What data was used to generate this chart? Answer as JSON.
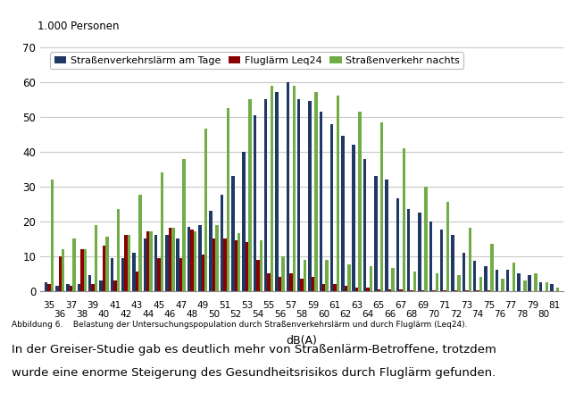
{
  "ylabel": "1.000 Personen",
  "xlabel": "dB(A)",
  "ylim": [
    0,
    70
  ],
  "yticks": [
    0,
    10,
    20,
    30,
    40,
    50,
    60,
    70
  ],
  "legend_labels": [
    "Straßenverkehrslärm am Tage",
    "Fluglärm Leq24",
    "Straßenverkehr nachts"
  ],
  "colors": [
    "#1F3864",
    "#8B0000",
    "#70AD47"
  ],
  "x_labels_top": [
    "35",
    "37",
    "39",
    "41",
    "43",
    "45",
    "47",
    "49",
    "51",
    "53",
    "55",
    "57",
    "59",
    "61",
    "63",
    "65",
    "67",
    "69",
    "71",
    "73",
    "75",
    "77",
    "79",
    "81"
  ],
  "x_labels_bottom": [
    "36",
    "38",
    "40",
    "42",
    "44",
    "46",
    "48",
    "50",
    "52",
    "54",
    "56",
    "58",
    "60",
    "62",
    "64",
    "66",
    "68",
    "70",
    "72",
    "74",
    "76",
    "78",
    "80"
  ],
  "street_day": [
    2.5,
    1.5,
    2.0,
    2.0,
    4.5,
    3.0,
    9.5,
    9.5,
    11.0,
    15.0,
    16.0,
    16.0,
    15.0,
    18.5,
    19.0,
    23.0,
    27.5,
    33.0,
    40.0,
    50.5,
    55.0,
    57.0,
    60.0,
    55.0,
    54.5,
    51.5,
    48.0,
    44.5,
    42.0,
    38.0,
    33.0,
    32.0,
    26.5,
    23.5,
    22.5,
    20.0,
    17.5,
    16.0,
    11.0,
    8.5,
    7.0,
    6.0,
    6.0,
    5.0,
    4.5,
    2.5,
    2.0
  ],
  "flight": [
    2.0,
    10.0,
    1.5,
    12.0,
    2.0,
    13.0,
    3.0,
    16.0,
    5.5,
    17.0,
    9.5,
    18.0,
    9.5,
    17.5,
    10.5,
    15.0,
    15.0,
    14.5,
    14.0,
    9.0,
    5.0,
    4.0,
    5.0,
    3.5,
    4.0,
    2.0,
    2.0,
    1.5,
    1.0,
    0.8,
    0.5,
    0.5,
    0.3,
    0.2,
    0.1,
    0.1,
    0.1,
    0.1,
    0.1,
    0.1,
    0.1,
    0.0,
    0.0,
    0.0,
    0.0,
    0.0,
    0.0
  ],
  "street_night": [
    32.0,
    12.0,
    15.0,
    12.0,
    19.0,
    15.5,
    23.5,
    16.0,
    27.5,
    17.0,
    34.0,
    18.0,
    38.0,
    17.0,
    46.5,
    19.0,
    52.5,
    16.5,
    55.0,
    14.5,
    59.0,
    10.0,
    59.0,
    9.0,
    57.0,
    9.0,
    56.0,
    7.5,
    51.5,
    7.0,
    48.5,
    6.5,
    41.0,
    5.5,
    30.0,
    5.0,
    25.5,
    4.5,
    18.0,
    4.0,
    13.5,
    3.5,
    8.0,
    3.0,
    5.0,
    2.5,
    1.0
  ],
  "caption": "Abbildung 6.    Belastung der Untersuchungspopulation durch Straßenverkehrslärm und durch Fluglärm (Leq24).",
  "body_text_line1": "In der Greiser-Studie gab es deutlich mehr von Straßenlärm-Betroffene, trotzdem",
  "body_text_line2": "wurde eine enorme Steigerung des Gesundheitsrisikos durch Fluglärm gefunden.",
  "background_color": "#FFFFFF",
  "grid_color": "#C8C8C8"
}
